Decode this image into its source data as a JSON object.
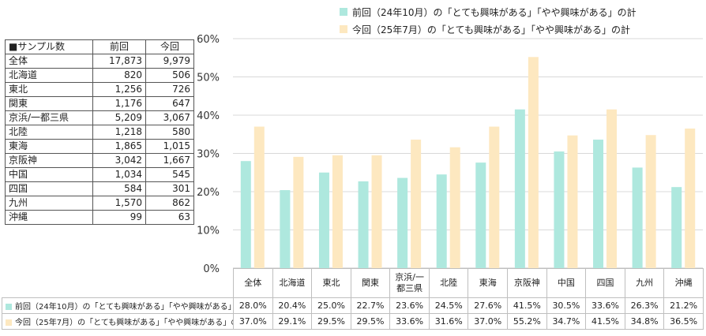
{
  "colors": {
    "prev": "#aee8de",
    "curr": "#fde8c0",
    "grid": "#d9d9d9",
    "axis": "#bfbfbf"
  },
  "legend": {
    "prev": "前回（24年10月）の「とても興味がある」「やや興味がある」の計",
    "curr": "今回（25年7月）の「とても興味がある」「やや興味がある」の計"
  },
  "sample_table": {
    "headers": [
      "■サンプル数",
      "前回",
      "今回"
    ],
    "rows": [
      [
        "全体",
        "17,873",
        "9,979"
      ],
      [
        "北海道",
        "820",
        "506"
      ],
      [
        "東北",
        "1,256",
        "726"
      ],
      [
        "関東",
        "1,176",
        "647"
      ],
      [
        "京浜/一都三県",
        "5,209",
        "3,067"
      ],
      [
        "北陸",
        "1,218",
        "580"
      ],
      [
        "東海",
        "1,865",
        "1,015"
      ],
      [
        "京阪神",
        "3,042",
        "1,667"
      ],
      [
        "中国",
        "1,034",
        "545"
      ],
      [
        "四国",
        "584",
        "301"
      ],
      [
        "九州",
        "1,570",
        "862"
      ],
      [
        "沖縄",
        "99",
        "63"
      ]
    ]
  },
  "chart_data": {
    "type": "bar",
    "categories": [
      "全体",
      "北海道",
      "東北",
      "関東",
      "京浜/一都三県",
      "北陸",
      "東海",
      "京阪神",
      "中国",
      "四国",
      "九州",
      "沖縄"
    ],
    "category_display": [
      "全体",
      "北海道",
      "東北",
      "関東",
      "京浜/一\n都三県",
      "北陸",
      "東海",
      "京阪神",
      "中国",
      "四国",
      "九州",
      "沖縄"
    ],
    "series": [
      {
        "name": "前回（24年10月）の「とても興味がある」「やや興味がある」の計",
        "values": [
          28.0,
          20.4,
          25.0,
          22.7,
          23.6,
          24.5,
          27.6,
          41.5,
          30.5,
          33.6,
          26.3,
          21.2
        ],
        "labels": [
          "28.0%",
          "20.4%",
          "25.0%",
          "22.7%",
          "23.6%",
          "24.5%",
          "27.6%",
          "41.5%",
          "30.5%",
          "33.6%",
          "26.3%",
          "21.2%"
        ]
      },
      {
        "name": "今回（25年7月）の「とても興味がある」「やや興味がある」の計",
        "values": [
          37.0,
          29.1,
          29.5,
          29.5,
          33.6,
          31.6,
          37.0,
          55.2,
          34.7,
          41.5,
          34.8,
          36.5
        ],
        "labels": [
          "37.0%",
          "29.1%",
          "29.5%",
          "29.5%",
          "33.6%",
          "31.6%",
          "37.0%",
          "55.2%",
          "34.7%",
          "41.5%",
          "34.8%",
          "36.5%"
        ]
      }
    ],
    "ylim": [
      0,
      60
    ],
    "yticks": [
      0,
      10,
      20,
      30,
      40,
      50,
      60
    ],
    "ytick_labels": [
      "0%",
      "10%",
      "20%",
      "30%",
      "40%",
      "50%",
      "60%"
    ],
    "grid": true,
    "legend_position": "top"
  }
}
